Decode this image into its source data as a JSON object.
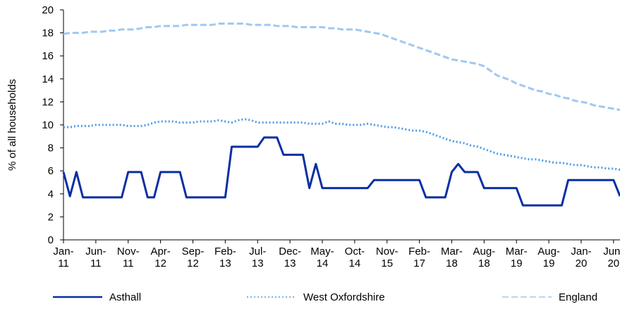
{
  "chart_data": {
    "type": "line",
    "y_label": "% of all households",
    "categories": [
      "Jan-11",
      null,
      null,
      null,
      null,
      "Jun-11",
      null,
      null,
      null,
      null,
      "Nov-11",
      null,
      null,
      null,
      null,
      "Apr-12",
      null,
      null,
      null,
      null,
      "Sep-12",
      null,
      null,
      null,
      null,
      "Feb-13",
      null,
      null,
      null,
      null,
      "Jul-13",
      null,
      null,
      null,
      null,
      "Dec-13",
      null,
      null,
      null,
      null,
      "May-14",
      null,
      null,
      null,
      null,
      "Oct-14",
      null,
      null,
      null,
      null,
      "Nov-15",
      null,
      null,
      null,
      null,
      "Feb-17",
      null,
      null,
      null,
      null,
      "Mar-18",
      null,
      null,
      null,
      null,
      "Aug-18",
      null,
      null,
      null,
      null,
      "Mar-19",
      null,
      null,
      null,
      null,
      "Aug-19",
      null,
      null,
      null,
      null,
      "Jan-20",
      null,
      null,
      null,
      null,
      "Jun-20",
      null
    ],
    "series": [
      {
        "name": "Asthall",
        "color": "#0b2fa3",
        "style": "solid",
        "values": [
          5.9,
          3.8,
          5.9,
          3.7,
          3.7,
          3.7,
          3.7,
          3.7,
          3.7,
          3.7,
          5.9,
          5.9,
          5.9,
          3.7,
          3.7,
          5.9,
          5.9,
          5.9,
          5.9,
          3.7,
          3.7,
          3.7,
          3.7,
          3.7,
          3.7,
          3.7,
          8.1,
          8.1,
          8.1,
          8.1,
          8.1,
          8.9,
          8.9,
          8.9,
          7.4,
          7.4,
          7.4,
          7.4,
          4.5,
          6.6,
          4.5,
          4.5,
          4.5,
          4.5,
          4.5,
          4.5,
          4.5,
          4.5,
          5.2,
          5.2,
          5.2,
          5.2,
          5.2,
          5.2,
          5.2,
          5.2,
          3.7,
          3.7,
          3.7,
          3.7,
          5.9,
          6.6,
          5.9,
          5.9,
          5.9,
          4.5,
          4.5,
          4.5,
          4.5,
          4.5,
          4.5,
          3.0,
          3.0,
          3.0,
          3.0,
          3.0,
          3.0,
          3.0,
          5.2,
          5.2,
          5.2,
          5.2,
          5.2,
          5.2,
          5.2,
          5.2,
          3.8
        ]
      },
      {
        "name": "West Oxfordshire",
        "color": "#4d9be6",
        "style": "dotted",
        "values": [
          9.8,
          9.8,
          9.9,
          9.9,
          9.9,
          10.0,
          10.0,
          10.0,
          10.0,
          10.0,
          9.9,
          9.9,
          9.9,
          10.0,
          10.2,
          10.3,
          10.3,
          10.3,
          10.2,
          10.2,
          10.2,
          10.3,
          10.3,
          10.3,
          10.4,
          10.3,
          10.2,
          10.4,
          10.5,
          10.4,
          10.2,
          10.2,
          10.2,
          10.2,
          10.2,
          10.2,
          10.2,
          10.2,
          10.1,
          10.1,
          10.1,
          10.3,
          10.1,
          10.1,
          10.0,
          10.0,
          10.0,
          10.1,
          10.0,
          9.9,
          9.8,
          9.8,
          9.7,
          9.6,
          9.5,
          9.5,
          9.4,
          9.2,
          9.0,
          8.8,
          8.6,
          8.5,
          8.4,
          8.2,
          8.1,
          7.9,
          7.7,
          7.5,
          7.4,
          7.3,
          7.2,
          7.1,
          7.0,
          7.0,
          6.9,
          6.8,
          6.7,
          6.7,
          6.6,
          6.5,
          6.5,
          6.4,
          6.3,
          6.3,
          6.2,
          6.2,
          6.1
        ]
      },
      {
        "name": "England",
        "color": "#9fc9f1",
        "style": "dashed",
        "values": [
          17.9,
          18.0,
          18.0,
          18.0,
          18.1,
          18.1,
          18.1,
          18.2,
          18.2,
          18.3,
          18.3,
          18.3,
          18.4,
          18.5,
          18.5,
          18.6,
          18.6,
          18.6,
          18.6,
          18.7,
          18.7,
          18.7,
          18.7,
          18.7,
          18.8,
          18.8,
          18.8,
          18.8,
          18.8,
          18.7,
          18.7,
          18.7,
          18.7,
          18.6,
          18.6,
          18.6,
          18.5,
          18.5,
          18.5,
          18.5,
          18.5,
          18.4,
          18.4,
          18.3,
          18.3,
          18.3,
          18.2,
          18.1,
          18.0,
          17.9,
          17.7,
          17.5,
          17.3,
          17.1,
          16.9,
          16.7,
          16.5,
          16.3,
          16.1,
          15.9,
          15.7,
          15.6,
          15.5,
          15.4,
          15.3,
          15.1,
          14.7,
          14.3,
          14.1,
          13.9,
          13.6,
          13.4,
          13.2,
          13.0,
          12.9,
          12.7,
          12.6,
          12.4,
          12.3,
          12.1,
          12.0,
          11.9,
          11.7,
          11.6,
          11.5,
          11.4,
          11.3
        ]
      }
    ],
    "ylim": [
      0,
      20
    ],
    "yticks": [
      0,
      2,
      4,
      6,
      8,
      10,
      12,
      14,
      16,
      18,
      20
    ],
    "grid": false,
    "legend": "bottom"
  }
}
